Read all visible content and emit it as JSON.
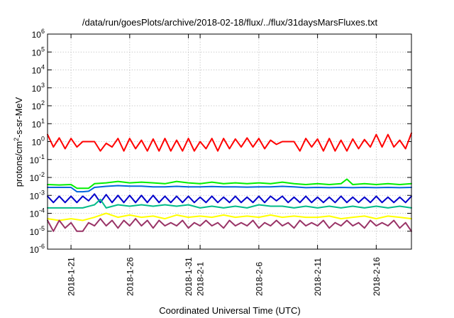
{
  "chart_data": {
    "type": "line",
    "title": "/data/run/goesPlots/archive/2018-02-18/flux/../flux/31daysMarsFluxes.txt",
    "xlabel": "Coordinated Universal Time (UTC)",
    "ylabel": {
      "prefix": "protons/cm",
      "superscript": "2",
      "suffix": "-s-sr-MeV"
    },
    "y_scale": "log",
    "ylim_exponents": [
      -6,
      6
    ],
    "ytick_base": "10",
    "ytick_exponents": [
      -6,
      -5,
      -4,
      -3,
      -2,
      -1,
      0,
      1,
      2,
      3,
      4,
      5,
      6
    ],
    "xlim": [
      "2018-01-19",
      "2018-02-19"
    ],
    "xticks": [
      {
        "date": "2018-01-21",
        "label": "2018-1-21"
      },
      {
        "date": "2018-01-26",
        "label": "2018-1-26"
      },
      {
        "date": "2018-01-31",
        "label": "2018-1-31"
      },
      {
        "date": "2018-02-01",
        "label": "2018-2-1"
      },
      {
        "date": "2018-02-06",
        "label": "2018-2-6"
      },
      {
        "date": "2018-02-11",
        "label": "2018-2-11"
      },
      {
        "date": "2018-02-16",
        "label": "2018-2-16"
      }
    ],
    "grid": true,
    "legend": "none",
    "series": [
      {
        "color": "#ff0000",
        "x": [
          "2018-01-19T00:00",
          "2018-01-19T12:00",
          "2018-01-20T00:00",
          "2018-01-20T12:00",
          "2018-01-21T00:00",
          "2018-01-21T12:00",
          "2018-01-22T00:00",
          "2018-01-22T12:00",
          "2018-01-23T00:00",
          "2018-01-23T12:00",
          "2018-01-24T00:00",
          "2018-01-24T12:00",
          "2018-01-25T00:00",
          "2018-01-25T12:00",
          "2018-01-26T00:00",
          "2018-01-26T12:00",
          "2018-01-27T00:00",
          "2018-01-27T12:00",
          "2018-01-28T00:00",
          "2018-01-28T12:00",
          "2018-01-29T00:00",
          "2018-01-29T12:00",
          "2018-01-30T00:00",
          "2018-01-30T12:00",
          "2018-01-31T00:00",
          "2018-01-31T12:00",
          "2018-02-01T00:00",
          "2018-02-01T12:00",
          "2018-02-02T00:00",
          "2018-02-02T12:00",
          "2018-02-03T00:00",
          "2018-02-03T12:00",
          "2018-02-04T00:00",
          "2018-02-04T12:00",
          "2018-02-05T00:00",
          "2018-02-05T12:00",
          "2018-02-06T00:00",
          "2018-02-06T12:00",
          "2018-02-07T00:00",
          "2018-02-07T12:00",
          "2018-02-08T00:00",
          "2018-02-08T12:00",
          "2018-02-09T00:00",
          "2018-02-09T12:00",
          "2018-02-10T00:00",
          "2018-02-10T12:00",
          "2018-02-11T00:00",
          "2018-02-11T12:00",
          "2018-02-12T00:00",
          "2018-02-12T12:00",
          "2018-02-13T00:00",
          "2018-02-13T12:00",
          "2018-02-14T00:00",
          "2018-02-14T12:00",
          "2018-02-15T00:00",
          "2018-02-15T12:00",
          "2018-02-16T00:00",
          "2018-02-16T12:00",
          "2018-02-17T00:00",
          "2018-02-17T12:00",
          "2018-02-18T00:00",
          "2018-02-18T12:00",
          "2018-02-19T00:00"
        ],
        "y": [
          2.5,
          0.5,
          1.6,
          0.4,
          1.5,
          0.5,
          1.0,
          1.0,
          1.0,
          0.3,
          0.8,
          0.5,
          1.5,
          0.3,
          1.5,
          0.4,
          1.2,
          0.3,
          1.4,
          0.3,
          1.5,
          0.3,
          1.2,
          0.3,
          1.5,
          0.3,
          1.0,
          0.4,
          1.5,
          0.3,
          1.5,
          0.4,
          1.4,
          0.5,
          1.6,
          0.5,
          1.5,
          0.4,
          1.2,
          0.7,
          1.0,
          1.0,
          1.0,
          0.3,
          1.5,
          0.5,
          1.4,
          0.3,
          1.5,
          0.3,
          1.2,
          0.3,
          1.4,
          0.4,
          1.3,
          0.5,
          2.5,
          0.5,
          2.5,
          0.5,
          1.2,
          0.4,
          3.0
        ]
      },
      {
        "color": "#00ee00",
        "x": [
          "2018-01-19T00:00",
          "2018-01-20T00:00",
          "2018-01-21T00:00",
          "2018-01-21T12:00",
          "2018-01-22T00:00",
          "2018-01-22T12:00",
          "2018-01-23T00:00",
          "2018-01-24T00:00",
          "2018-01-25T00:00",
          "2018-01-26T00:00",
          "2018-01-27T00:00",
          "2018-01-28T00:00",
          "2018-01-29T00:00",
          "2018-01-30T00:00",
          "2018-01-31T00:00",
          "2018-02-01T00:00",
          "2018-02-02T00:00",
          "2018-02-03T00:00",
          "2018-02-04T00:00",
          "2018-02-05T00:00",
          "2018-02-06T00:00",
          "2018-02-07T00:00",
          "2018-02-08T00:00",
          "2018-02-09T00:00",
          "2018-02-10T00:00",
          "2018-02-11T00:00",
          "2018-02-12T00:00",
          "2018-02-13T00:00",
          "2018-02-13T12:00",
          "2018-02-14T00:00",
          "2018-02-15T00:00",
          "2018-02-16T00:00",
          "2018-02-17T00:00",
          "2018-02-18T00:00",
          "2018-02-19T00:00"
        ],
        "y": [
          0.004,
          0.0038,
          0.004,
          0.0025,
          0.0025,
          0.0025,
          0.0045,
          0.005,
          0.006,
          0.005,
          0.0055,
          0.005,
          0.0045,
          0.006,
          0.005,
          0.0045,
          0.0055,
          0.0045,
          0.005,
          0.0045,
          0.005,
          0.0045,
          0.0055,
          0.0045,
          0.004,
          0.0045,
          0.004,
          0.0045,
          0.008,
          0.004,
          0.0045,
          0.004,
          0.0045,
          0.004,
          0.0045
        ]
      },
      {
        "color": "#0066dd",
        "x": [
          "2018-01-19T00:00",
          "2018-01-20T00:00",
          "2018-01-21T00:00",
          "2018-01-21T12:00",
          "2018-01-22T00:00",
          "2018-01-22T12:00",
          "2018-01-23T00:00",
          "2018-01-24T00:00",
          "2018-01-25T00:00",
          "2018-01-26T00:00",
          "2018-01-27T00:00",
          "2018-01-28T00:00",
          "2018-01-29T00:00",
          "2018-01-30T00:00",
          "2018-01-31T00:00",
          "2018-02-01T00:00",
          "2018-02-02T00:00",
          "2018-02-03T00:00",
          "2018-02-04T00:00",
          "2018-02-05T00:00",
          "2018-02-06T00:00",
          "2018-02-07T00:00",
          "2018-02-08T00:00",
          "2018-02-09T00:00",
          "2018-02-10T00:00",
          "2018-02-11T00:00",
          "2018-02-12T00:00",
          "2018-02-13T00:00",
          "2018-02-14T00:00",
          "2018-02-15T00:00",
          "2018-02-16T00:00",
          "2018-02-17T00:00",
          "2018-02-18T00:00",
          "2018-02-19T00:00"
        ],
        "y": [
          0.0028,
          0.0028,
          0.0028,
          0.0016,
          0.0016,
          0.0017,
          0.0028,
          0.0032,
          0.0035,
          0.0033,
          0.0033,
          0.003,
          0.003,
          0.0032,
          0.003,
          0.003,
          0.0031,
          0.003,
          0.003,
          0.0029,
          0.003,
          0.003,
          0.0032,
          0.003,
          0.0027,
          0.0028,
          0.0027,
          0.0028,
          0.0027,
          0.0028,
          0.0027,
          0.0028,
          0.0027,
          0.0028
        ]
      },
      {
        "color": "#0000cc",
        "x": [
          "2018-01-19T00:00",
          "2018-01-19T12:00",
          "2018-01-20T00:00",
          "2018-01-20T12:00",
          "2018-01-21T00:00",
          "2018-01-21T12:00",
          "2018-01-22T00:00",
          "2018-01-22T12:00",
          "2018-01-23T00:00",
          "2018-01-23T12:00",
          "2018-01-24T00:00",
          "2018-01-24T12:00",
          "2018-01-25T00:00",
          "2018-01-25T12:00",
          "2018-01-26T00:00",
          "2018-01-26T12:00",
          "2018-01-27T00:00",
          "2018-01-27T12:00",
          "2018-01-28T00:00",
          "2018-01-28T12:00",
          "2018-01-29T00:00",
          "2018-01-29T12:00",
          "2018-01-30T00:00",
          "2018-01-30T12:00",
          "2018-01-31T00:00",
          "2018-01-31T12:00",
          "2018-02-01T00:00",
          "2018-02-01T12:00",
          "2018-02-02T00:00",
          "2018-02-02T12:00",
          "2018-02-03T00:00",
          "2018-02-03T12:00",
          "2018-02-04T00:00",
          "2018-02-04T12:00",
          "2018-02-05T00:00",
          "2018-02-05T12:00",
          "2018-02-06T00:00",
          "2018-02-06T12:00",
          "2018-02-07T00:00",
          "2018-02-07T12:00",
          "2018-02-08T00:00",
          "2018-02-08T12:00",
          "2018-02-09T00:00",
          "2018-02-09T12:00",
          "2018-02-10T00:00",
          "2018-02-10T12:00",
          "2018-02-11T00:00",
          "2018-02-11T12:00",
          "2018-02-12T00:00",
          "2018-02-12T12:00",
          "2018-02-13T00:00",
          "2018-02-13T12:00",
          "2018-02-14T00:00",
          "2018-02-14T12:00",
          "2018-02-15T00:00",
          "2018-02-15T12:00",
          "2018-02-16T00:00",
          "2018-02-16T12:00",
          "2018-02-17T00:00",
          "2018-02-17T12:00",
          "2018-02-18T00:00",
          "2018-02-18T12:00",
          "2018-02-19T00:00"
        ],
        "y": [
          0.0009,
          0.0004,
          0.0009,
          0.0004,
          0.0009,
          0.0004,
          0.0009,
          0.0005,
          0.0012,
          0.0004,
          0.0011,
          0.0004,
          0.001,
          0.0004,
          0.001,
          0.0004,
          0.001,
          0.0004,
          0.001,
          0.0004,
          0.0009,
          0.0004,
          0.0009,
          0.0004,
          0.0009,
          0.0004,
          0.0008,
          0.0004,
          0.0009,
          0.0004,
          0.0008,
          0.0004,
          0.0009,
          0.0004,
          0.0008,
          0.0004,
          0.0009,
          0.0004,
          0.0009,
          0.0005,
          0.0009,
          0.0004,
          0.0008,
          0.0004,
          0.0009,
          0.0004,
          0.0008,
          0.0004,
          0.0008,
          0.0004,
          0.0009,
          0.0004,
          0.0008,
          0.0004,
          0.0008,
          0.0004,
          0.0009,
          0.0004,
          0.0008,
          0.0004,
          0.0008,
          0.0004,
          0.0009
        ]
      },
      {
        "color": "#00bb88",
        "x": [
          "2018-01-19T00:00",
          "2018-01-20T00:00",
          "2018-01-21T00:00",
          "2018-01-22T00:00",
          "2018-01-23T00:00",
          "2018-01-23T12:00",
          "2018-01-24T00:00",
          "2018-01-25T00:00",
          "2018-01-26T00:00",
          "2018-01-27T00:00",
          "2018-01-28T00:00",
          "2018-01-29T00:00",
          "2018-01-30T00:00",
          "2018-01-31T00:00",
          "2018-02-01T00:00",
          "2018-02-02T00:00",
          "2018-02-03T00:00",
          "2018-02-04T00:00",
          "2018-02-05T00:00",
          "2018-02-06T00:00",
          "2018-02-07T00:00",
          "2018-02-08T00:00",
          "2018-02-09T00:00",
          "2018-02-10T00:00",
          "2018-02-11T00:00",
          "2018-02-12T00:00",
          "2018-02-13T00:00",
          "2018-02-14T00:00",
          "2018-02-15T00:00",
          "2018-02-16T00:00",
          "2018-02-17T00:00",
          "2018-02-18T00:00",
          "2018-02-19T00:00"
        ],
        "y": [
          0.0002,
          0.0002,
          0.0002,
          0.0002,
          0.0003,
          0.0006,
          0.0002,
          0.0003,
          0.00025,
          0.0003,
          0.00025,
          0.0003,
          0.00025,
          0.0003,
          0.0002,
          0.00025,
          0.0002,
          0.00025,
          0.0002,
          0.0003,
          0.00025,
          0.00025,
          0.0002,
          0.00025,
          0.0002,
          0.00025,
          0.0002,
          0.00025,
          0.0002,
          0.00025,
          0.0002,
          0.00025,
          0.0002
        ]
      },
      {
        "color": "#ffff00",
        "x": [
          "2018-01-19T00:00",
          "2018-01-20T00:00",
          "2018-01-21T00:00",
          "2018-01-22T00:00",
          "2018-01-23T00:00",
          "2018-01-24T00:00",
          "2018-01-25T00:00",
          "2018-01-26T00:00",
          "2018-01-27T00:00",
          "2018-01-28T00:00",
          "2018-01-29T00:00",
          "2018-01-30T00:00",
          "2018-01-31T00:00",
          "2018-02-01T00:00",
          "2018-02-02T00:00",
          "2018-02-03T00:00",
          "2018-02-04T00:00",
          "2018-02-05T00:00",
          "2018-02-06T00:00",
          "2018-02-07T00:00",
          "2018-02-08T00:00",
          "2018-02-09T00:00",
          "2018-02-10T00:00",
          "2018-02-11T00:00",
          "2018-02-12T00:00",
          "2018-02-13T00:00",
          "2018-02-14T00:00",
          "2018-02-15T00:00",
          "2018-02-16T00:00",
          "2018-02-17T00:00",
          "2018-02-18T00:00",
          "2018-02-19T00:00"
        ],
        "y": [
          5e-05,
          4e-05,
          5e-05,
          4e-05,
          6e-05,
          0.0001,
          6e-05,
          8e-05,
          6e-05,
          7e-05,
          5e-05,
          8e-05,
          6e-05,
          7e-05,
          6e-05,
          8e-05,
          6e-05,
          7e-05,
          6e-05,
          8e-05,
          6e-05,
          7e-05,
          6e-05,
          6e-05,
          7e-05,
          5e-05,
          6e-05,
          7e-05,
          5e-05,
          7e-05,
          6e-05,
          5e-05
        ]
      },
      {
        "color": "#993366",
        "x": [
          "2018-01-19T00:00",
          "2018-01-19T12:00",
          "2018-01-20T00:00",
          "2018-01-20T12:00",
          "2018-01-21T00:00",
          "2018-01-21T12:00",
          "2018-01-22T00:00",
          "2018-01-22T12:00",
          "2018-01-23T00:00",
          "2018-01-23T12:00",
          "2018-01-24T00:00",
          "2018-01-24T12:00",
          "2018-01-25T00:00",
          "2018-01-25T12:00",
          "2018-01-26T00:00",
          "2018-01-26T12:00",
          "2018-01-27T00:00",
          "2018-01-27T12:00",
          "2018-01-28T00:00",
          "2018-01-28T12:00",
          "2018-01-29T00:00",
          "2018-01-29T12:00",
          "2018-01-30T00:00",
          "2018-01-30T12:00",
          "2018-01-31T00:00",
          "2018-01-31T12:00",
          "2018-02-01T00:00",
          "2018-02-01T12:00",
          "2018-02-02T00:00",
          "2018-02-02T12:00",
          "2018-02-03T00:00",
          "2018-02-03T12:00",
          "2018-02-04T00:00",
          "2018-02-04T12:00",
          "2018-02-05T00:00",
          "2018-02-05T12:00",
          "2018-02-06T00:00",
          "2018-02-06T12:00",
          "2018-02-07T00:00",
          "2018-02-07T12:00",
          "2018-02-08T00:00",
          "2018-02-08T12:00",
          "2018-02-09T00:00",
          "2018-02-09T12:00",
          "2018-02-10T00:00",
          "2018-02-10T12:00",
          "2018-02-11T00:00",
          "2018-02-11T12:00",
          "2018-02-12T00:00",
          "2018-02-12T12:00",
          "2018-02-13T00:00",
          "2018-02-13T12:00",
          "2018-02-14T00:00",
          "2018-02-14T12:00",
          "2018-02-15T00:00",
          "2018-02-15T12:00",
          "2018-02-16T00:00",
          "2018-02-16T12:00",
          "2018-02-17T00:00",
          "2018-02-17T12:00",
          "2018-02-18T00:00",
          "2018-02-18T12:00",
          "2018-02-19T00:00"
        ],
        "y": [
          4e-05,
          1e-05,
          4e-05,
          1.5e-05,
          3e-05,
          1e-05,
          1e-05,
          3e-05,
          2e-05,
          5e-05,
          2e-05,
          4e-05,
          1.5e-05,
          4e-05,
          2e-05,
          5e-05,
          2e-05,
          4e-05,
          1.5e-05,
          4e-05,
          2e-05,
          3e-05,
          2e-05,
          4e-05,
          1.5e-05,
          3e-05,
          2e-05,
          4e-05,
          2e-05,
          3e-05,
          1.5e-05,
          4e-05,
          2e-05,
          3e-05,
          2e-05,
          4e-05,
          1.5e-05,
          3e-05,
          2e-05,
          4e-05,
          2e-05,
          3e-05,
          1.5e-05,
          4e-05,
          2e-05,
          3e-05,
          2e-05,
          4e-05,
          1.5e-05,
          3e-05,
          2e-05,
          4e-05,
          2e-05,
          3e-05,
          1.5e-05,
          4e-05,
          2e-05,
          3e-05,
          2e-05,
          4e-05,
          1.5e-05,
          3e-05,
          1e-05
        ]
      }
    ]
  }
}
